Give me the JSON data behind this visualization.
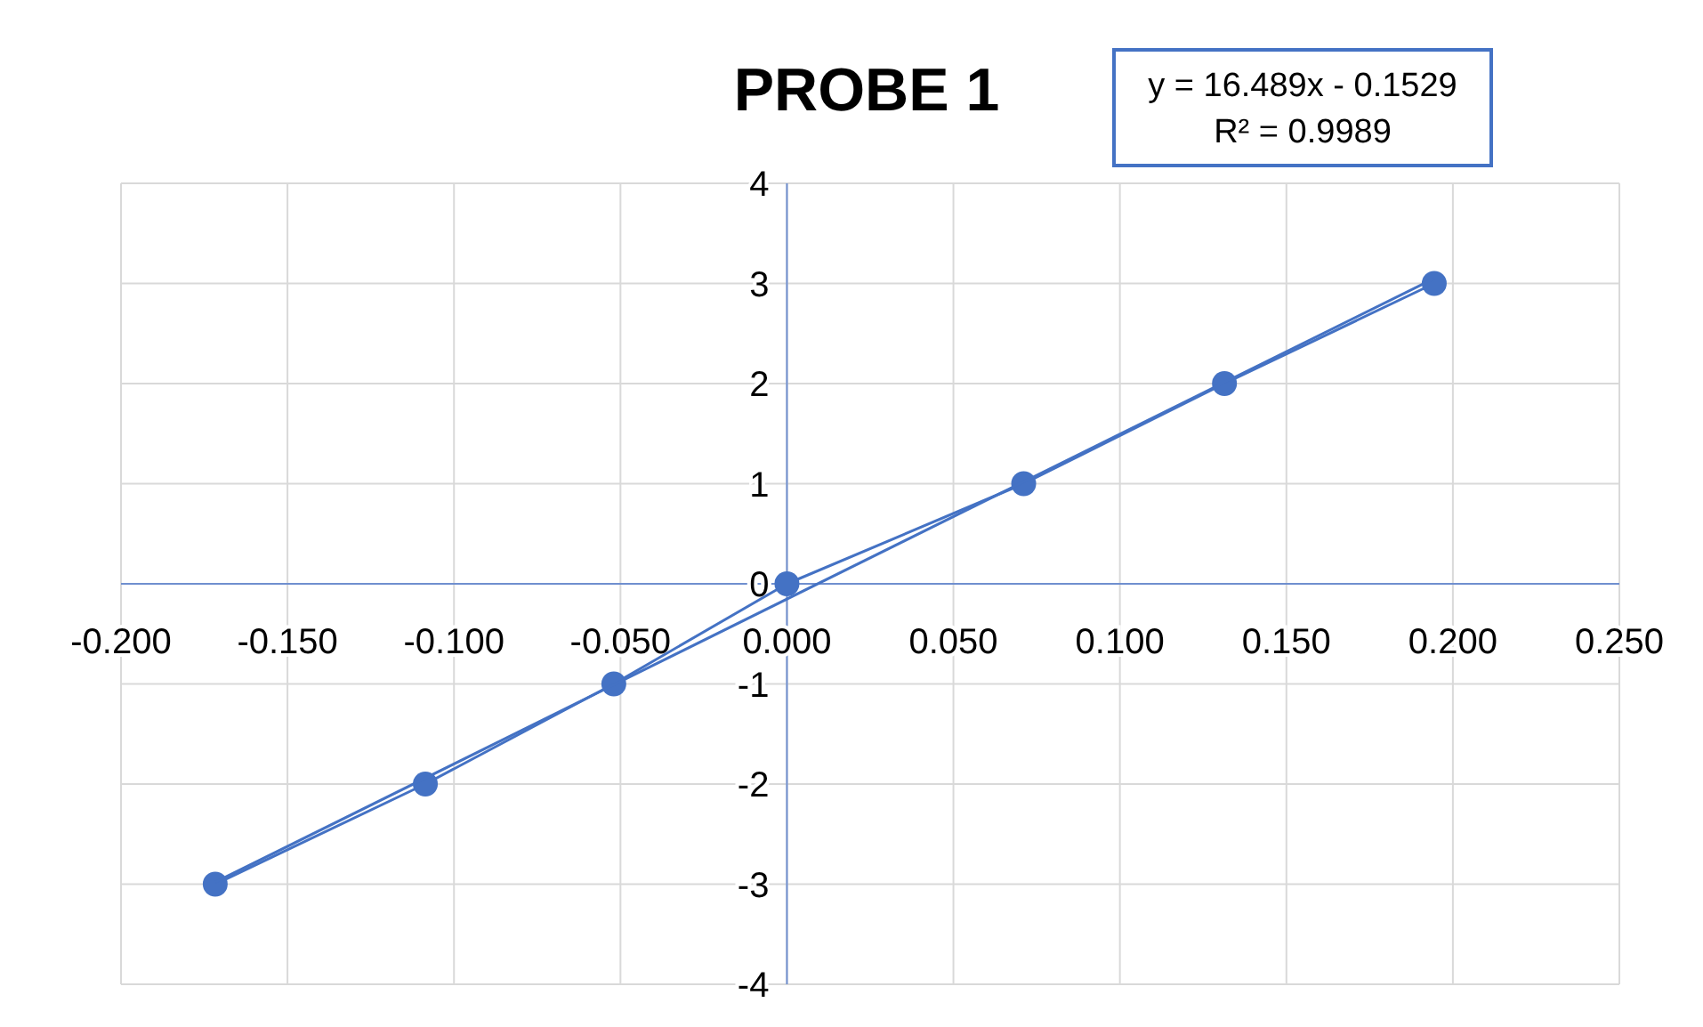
{
  "chart_data": {
    "type": "line",
    "title": "PROBE 1",
    "annotations": [
      "y = 16.489x - 0.1529",
      "R² = 0.9989"
    ],
    "xlim": [
      -0.2,
      0.25
    ],
    "ylim": [
      -4,
      4
    ],
    "xticks": [
      {
        "value": -0.2,
        "label": "-0.200"
      },
      {
        "value": -0.15,
        "label": "-0.150"
      },
      {
        "value": -0.1,
        "label": "-0.100"
      },
      {
        "value": -0.05,
        "label": "-0.050"
      },
      {
        "value": 0,
        "label": "0.000"
      },
      {
        "value": 0.05,
        "label": "0.050"
      },
      {
        "value": 0.1,
        "label": "0.100"
      },
      {
        "value": 0.15,
        "label": "0.150"
      },
      {
        "value": 0.2,
        "label": "0.200"
      },
      {
        "value": 0.25,
        "label": "0.250"
      }
    ],
    "yticks": [
      -4,
      -3,
      -2,
      -1,
      0,
      1,
      2,
      3,
      4
    ],
    "grid": true,
    "series": [
      {
        "color": "#4472c4",
        "marker": "circle",
        "x": [
          -0.1717,
          -0.1086,
          -0.052,
          0,
          0.0711,
          0.1314,
          0.1944
        ],
        "values": [
          -3,
          -2,
          -1,
          0,
          1,
          2,
          3
        ]
      },
      {
        "color": "#4472c4",
        "marker": "none",
        "x": [
          -0.1717,
          0.1944
        ],
        "values": [
          -2.98,
          3.05
        ]
      }
    ]
  }
}
